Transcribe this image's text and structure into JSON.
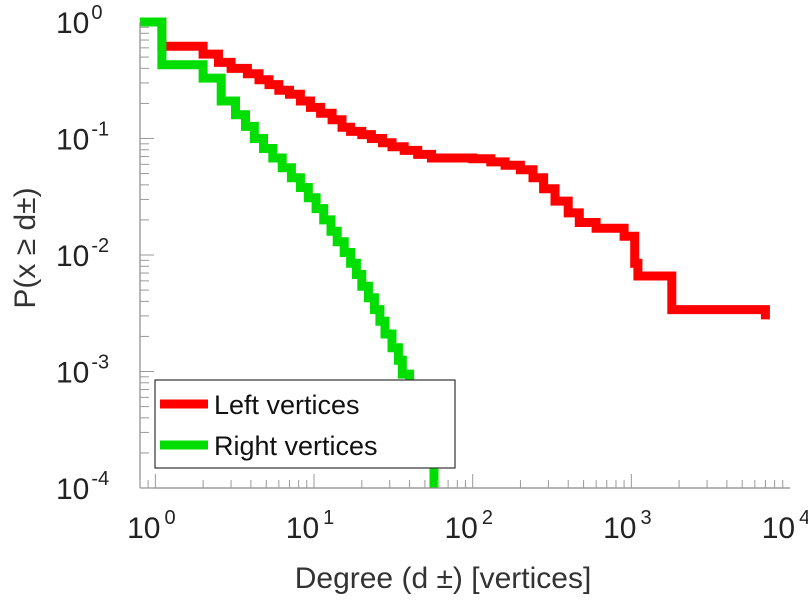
{
  "chart_data": {
    "type": "line",
    "xlabel": "Degree (d ±) [vertices]",
    "ylabel": "P(x ≥ d±)",
    "x_scale": "log",
    "y_scale": "log",
    "xlim": [
      0.8,
      10000
    ],
    "ylim": [
      0.0001,
      1
    ],
    "x_ticks": [
      {
        "value": 1,
        "base": "10",
        "exp": "0"
      },
      {
        "value": 10,
        "base": "10",
        "exp": "1"
      },
      {
        "value": 100,
        "base": "10",
        "exp": "2"
      },
      {
        "value": 1000,
        "base": "10",
        "exp": "3"
      },
      {
        "value": 10000,
        "base": "10",
        "exp": "4"
      }
    ],
    "y_ticks": [
      {
        "value": 1,
        "base": "10",
        "exp": "0"
      },
      {
        "value": 0.1,
        "base": "10",
        "exp": "-1"
      },
      {
        "value": 0.01,
        "base": "10",
        "exp": "-2"
      },
      {
        "value": 0.001,
        "base": "10",
        "exp": "-3"
      },
      {
        "value": 0.0001,
        "base": "10",
        "exp": "-4"
      }
    ],
    "grid": false,
    "legend_position": "bottom-left",
    "step": true,
    "series": [
      {
        "name": "Left vertices",
        "color": "#ff0000",
        "points": [
          [
            1,
            1
          ],
          [
            1.1,
            0.62
          ],
          [
            2.0,
            0.53
          ],
          [
            2.5,
            0.45
          ],
          [
            3.0,
            0.4
          ],
          [
            3.8,
            0.36
          ],
          [
            4.5,
            0.32
          ],
          [
            5.2,
            0.29
          ],
          [
            6.0,
            0.26
          ],
          [
            7.0,
            0.24
          ],
          [
            8.2,
            0.21
          ],
          [
            9.5,
            0.185
          ],
          [
            11,
            0.165
          ],
          [
            13,
            0.145
          ],
          [
            15,
            0.125
          ],
          [
            17,
            0.115
          ],
          [
            20,
            0.108
          ],
          [
            23,
            0.1
          ],
          [
            27,
            0.092
          ],
          [
            31,
            0.085
          ],
          [
            37,
            0.079
          ],
          [
            45,
            0.073
          ],
          [
            55,
            0.068
          ],
          [
            100,
            0.067
          ],
          [
            130,
            0.063
          ],
          [
            160,
            0.059
          ],
          [
            200,
            0.054
          ],
          [
            240,
            0.046
          ],
          [
            280,
            0.037
          ],
          [
            330,
            0.029
          ],
          [
            400,
            0.023
          ],
          [
            470,
            0.019
          ],
          [
            600,
            0.017
          ],
          [
            900,
            0.0145
          ],
          [
            1050,
            0.0085
          ],
          [
            1100,
            0.0066
          ],
          [
            1700,
            0.0066
          ],
          [
            1800,
            0.0034
          ],
          [
            7000,
            0.0028
          ]
        ]
      },
      {
        "name": "Right vertices",
        "color": "#00dd00",
        "points": [
          [
            0.8,
            1
          ],
          [
            1.1,
            0.43
          ],
          [
            2.0,
            0.33
          ],
          [
            2.6,
            0.21
          ],
          [
            3.2,
            0.16
          ],
          [
            3.7,
            0.127
          ],
          [
            4.2,
            0.1
          ],
          [
            4.8,
            0.082
          ],
          [
            5.5,
            0.068
          ],
          [
            6.3,
            0.056
          ],
          [
            7.2,
            0.046
          ],
          [
            8.2,
            0.038
          ],
          [
            9.2,
            0.031
          ],
          [
            10.3,
            0.025
          ],
          [
            11.5,
            0.02
          ],
          [
            12.8,
            0.016
          ],
          [
            14,
            0.013
          ],
          [
            15.5,
            0.0105
          ],
          [
            17,
            0.0085
          ],
          [
            18.5,
            0.0068
          ],
          [
            20,
            0.0054
          ],
          [
            22,
            0.0043
          ],
          [
            24,
            0.0034
          ],
          [
            26,
            0.0027
          ],
          [
            28,
            0.0021
          ],
          [
            31,
            0.0016
          ],
          [
            34,
            0.00125
          ],
          [
            36,
            0.00095
          ],
          [
            40,
            0.0006
          ],
          [
            48,
            0.00035
          ],
          [
            57,
            0.0001
          ]
        ]
      }
    ]
  }
}
